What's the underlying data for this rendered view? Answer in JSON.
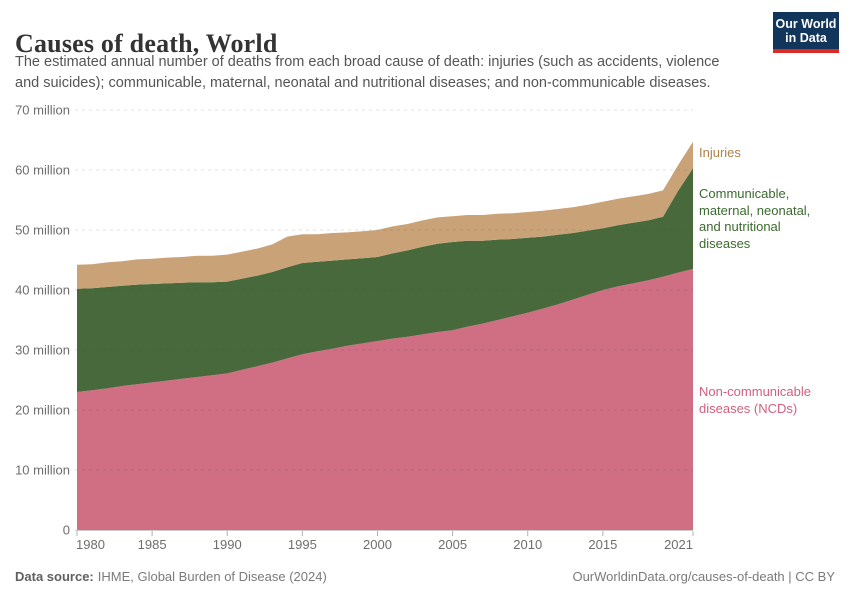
{
  "header": {
    "title": "Causes of death, World",
    "subtitle": "The estimated annual number of deaths from each broad cause of death: injuries (such as accidents, violence and suicides); communicable, maternal, neonatal and nutritional diseases; and non-communicable diseases.",
    "logo": {
      "line1": "Our World",
      "line2": "in Data",
      "bg_color": "#12355b",
      "stripe_color": "#dc2a27"
    }
  },
  "chart_data": {
    "type": "area",
    "stacked": true,
    "title": "Causes of death, World",
    "xlabel": "",
    "ylabel": "",
    "ylim": [
      0,
      70
    ],
    "grid": "horizontal-dashed",
    "legend_position": "right",
    "x": [
      1980,
      1981,
      1982,
      1983,
      1984,
      1985,
      1986,
      1987,
      1988,
      1989,
      1990,
      1991,
      1992,
      1993,
      1994,
      1995,
      1996,
      1997,
      1998,
      1999,
      2000,
      2001,
      2002,
      2003,
      2004,
      2005,
      2006,
      2007,
      2008,
      2009,
      2010,
      2011,
      2012,
      2013,
      2014,
      2015,
      2016,
      2017,
      2018,
      2019,
      2020,
      2021
    ],
    "series": [
      {
        "id": "ncds",
        "name": "Non-communicable diseases (NCDs)",
        "color": "#d06e84",
        "label_color": "#d25f7e",
        "values": [
          23.0,
          23.3,
          23.6,
          24.0,
          24.3,
          24.6,
          24.9,
          25.2,
          25.5,
          25.8,
          26.1,
          26.7,
          27.3,
          27.9,
          28.6,
          29.3,
          29.8,
          30.2,
          30.7,
          31.1,
          31.5,
          31.9,
          32.2,
          32.6,
          33.0,
          33.3,
          33.9,
          34.4,
          35.0,
          35.6,
          36.2,
          36.9,
          37.6,
          38.4,
          39.2,
          40.0,
          40.6,
          41.1,
          41.6,
          42.2,
          42.9,
          43.5
        ]
      },
      {
        "id": "communicable",
        "name": "Communicable, maternal, neonatal, and nutritional diseases",
        "color": "#47693b",
        "label_color": "#3c6a2f",
        "values": [
          17.2,
          17.0,
          16.9,
          16.7,
          16.6,
          16.4,
          16.2,
          16.0,
          15.8,
          15.5,
          15.3,
          15.2,
          15.1,
          15.1,
          15.2,
          15.2,
          14.9,
          14.7,
          14.4,
          14.2,
          14.0,
          14.2,
          14.4,
          14.6,
          14.7,
          14.7,
          14.3,
          13.8,
          13.4,
          12.9,
          12.5,
          12.0,
          11.6,
          11.1,
          10.7,
          10.3,
          10.2,
          10.1,
          10.0,
          10.0,
          13.6,
          16.8
        ]
      },
      {
        "id": "injuries",
        "name": "Injuries",
        "color": "#c9a277",
        "label_color": "#ae8348",
        "values": [
          4.0,
          4.0,
          4.1,
          4.1,
          4.2,
          4.2,
          4.3,
          4.3,
          4.4,
          4.4,
          4.5,
          4.5,
          4.5,
          4.6,
          5.1,
          4.8,
          4.6,
          4.6,
          4.5,
          4.5,
          4.5,
          4.5,
          4.4,
          4.4,
          4.4,
          4.3,
          4.3,
          4.3,
          4.3,
          4.3,
          4.3,
          4.3,
          4.3,
          4.3,
          4.3,
          4.4,
          4.4,
          4.4,
          4.4,
          4.4,
          4.3,
          4.4
        ]
      }
    ],
    "y_ticks": [
      {
        "value": 0,
        "label": "0"
      },
      {
        "value": 10,
        "label": "10 million"
      },
      {
        "value": 20,
        "label": "20 million"
      },
      {
        "value": 30,
        "label": "30 million"
      },
      {
        "value": 40,
        "label": "40 million"
      },
      {
        "value": 50,
        "label": "50 million"
      },
      {
        "value": 60,
        "label": "60 million"
      },
      {
        "value": 70,
        "label": "70 million"
      }
    ],
    "x_ticks": [
      {
        "value": 1980,
        "label": "1980"
      },
      {
        "value": 1985,
        "label": "1985"
      },
      {
        "value": 1990,
        "label": "1990"
      },
      {
        "value": 1995,
        "label": "1995"
      },
      {
        "value": 2000,
        "label": "2000"
      },
      {
        "value": 2005,
        "label": "2005"
      },
      {
        "value": 2010,
        "label": "2010"
      },
      {
        "value": 2015,
        "label": "2015"
      },
      {
        "value": 2021,
        "label": "2021"
      }
    ]
  },
  "footer": {
    "source_label": "Data source:",
    "source_text": "IHME, Global Burden of Disease (2024)",
    "link_text": "OurWorldinData.org/causes-of-death | CC BY"
  }
}
